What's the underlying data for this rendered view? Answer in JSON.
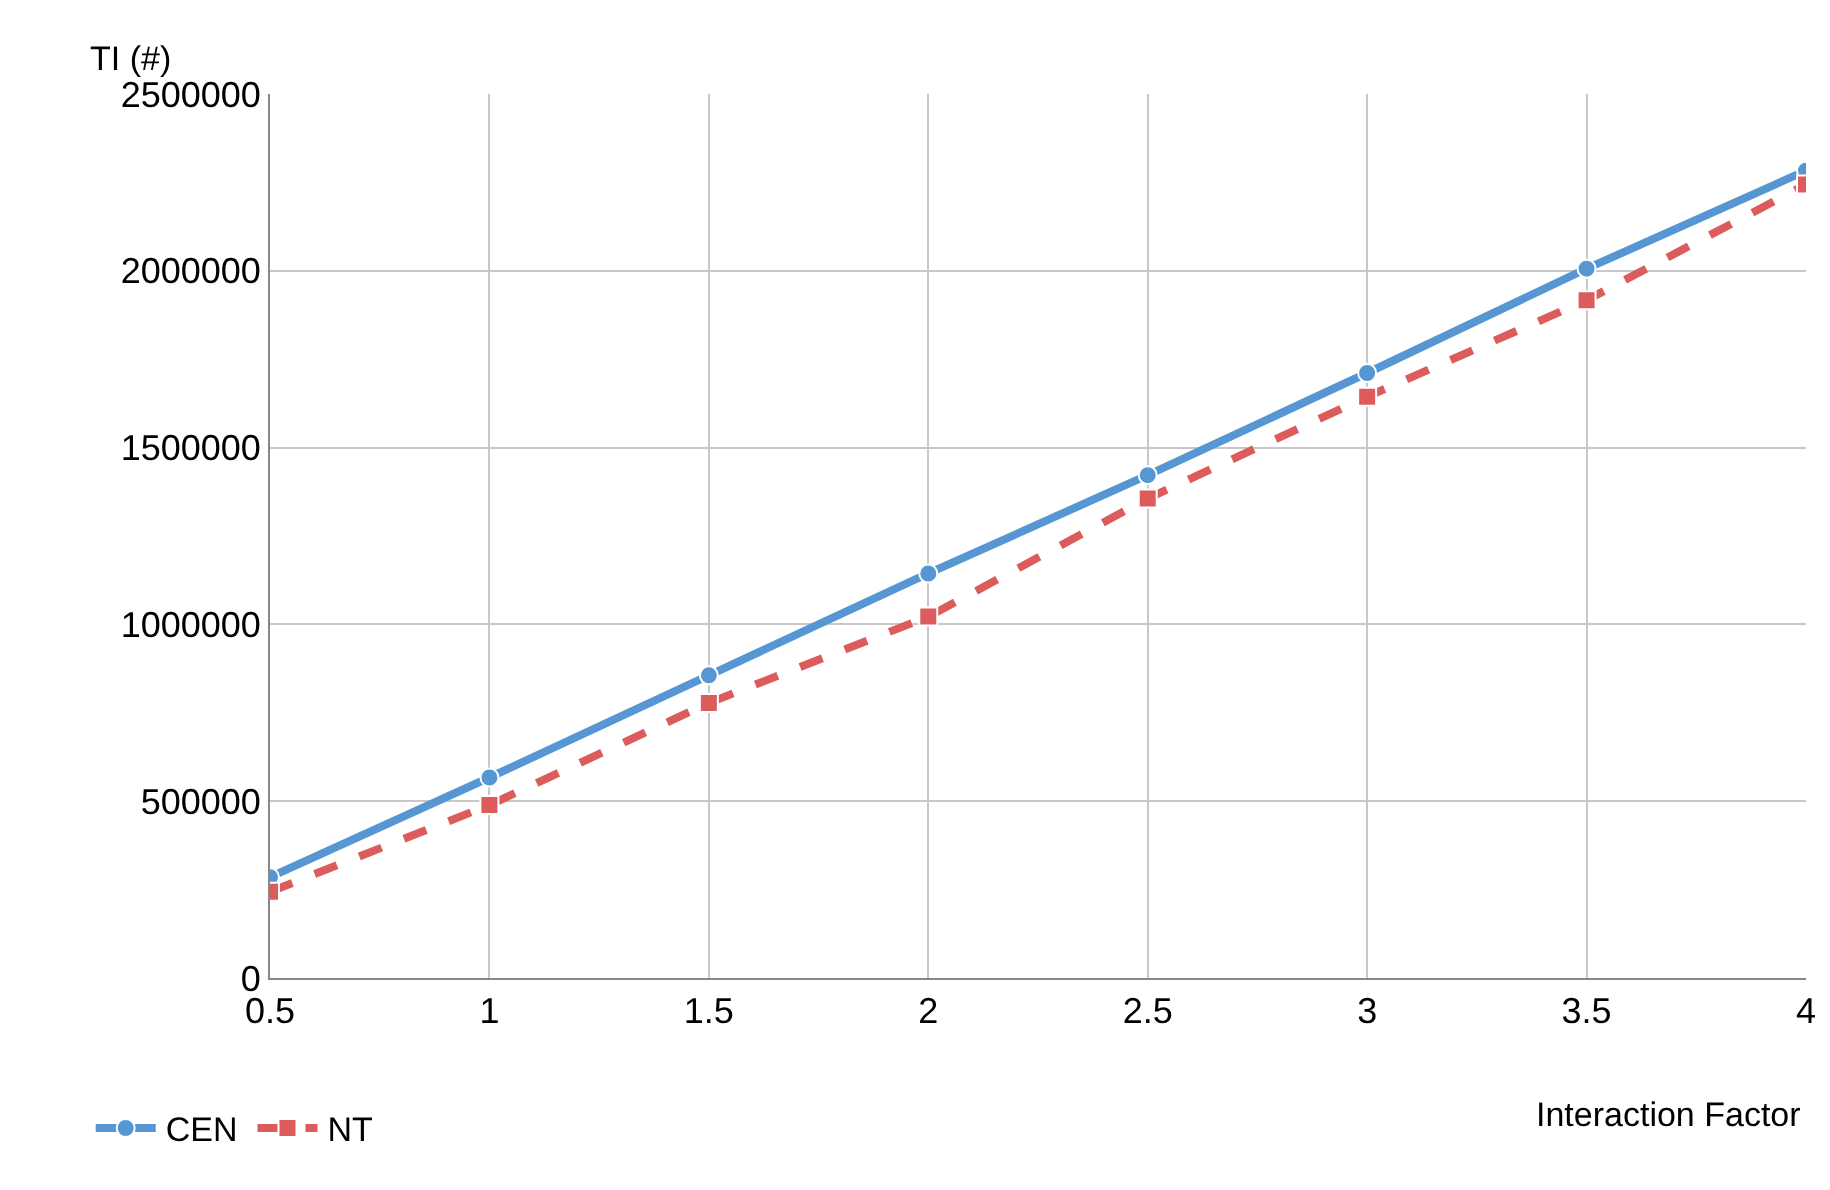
{
  "chart_data": {
    "type": "line",
    "xlabel": "Interaction Factor",
    "ylabel": "TI (#)",
    "x": [
      0.5,
      1,
      1.5,
      2,
      2.5,
      3,
      3.5,
      4
    ],
    "series": [
      {
        "name": "CEN",
        "color": "#5596d3",
        "marker": "circle",
        "line_style": "solid",
        "values": [
          285000,
          567000,
          856000,
          1144000,
          1422000,
          1711000,
          2006000,
          2283000
        ]
      },
      {
        "name": "NT",
        "color": "#dc5c5c",
        "marker": "square",
        "line_style": "dashed",
        "values": [
          244000,
          489000,
          778000,
          1022000,
          1356000,
          1644000,
          1917000,
          2244000
        ]
      }
    ],
    "xlim": [
      0.5,
      4
    ],
    "xticks": [
      0.5,
      1,
      1.5,
      2,
      2.5,
      3,
      3.5,
      4
    ],
    "ylim": [
      0,
      2500000
    ],
    "yticks": [
      0,
      500000,
      1000000,
      1500000,
      2000000,
      2500000
    ],
    "grid": true,
    "legend": "bottom left"
  }
}
